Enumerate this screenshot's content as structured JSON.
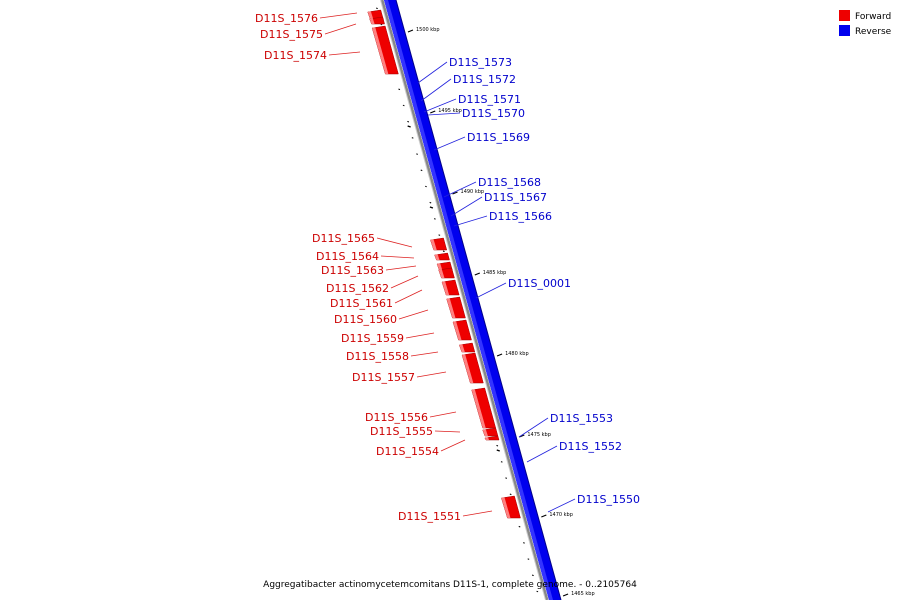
{
  "legend": [
    {
      "label": "Forward",
      "color": "#ee0000"
    },
    {
      "label": "Reverse",
      "color": "#0000ee"
    }
  ],
  "caption": "Aggregatibacter actinomycetemcomitans D11S-1, complete genome. - 0..2105764",
  "colors": {
    "forward": "#ee0000",
    "reverse": "#0000ee",
    "backbone": "#888888",
    "label_forward": "#cc0000",
    "label_reverse": "#0000cc"
  },
  "ticks": [
    {
      "label": "1500 kbp",
      "kbp": 1500
    },
    {
      "label": "1495 kbp",
      "kbp": 1495
    },
    {
      "label": "1490 kbp",
      "kbp": 1490
    },
    {
      "label": "1485 kbp",
      "kbp": 1485
    },
    {
      "label": "1480 kbp",
      "kbp": 1480
    },
    {
      "label": "1475 kbp",
      "kbp": 1475
    },
    {
      "label": "1470 kbp",
      "kbp": 1470
    },
    {
      "label": "1465 kbp",
      "kbp": 1465
    }
  ],
  "forward_genes": [
    {
      "label": "D11S_1576"
    },
    {
      "label": "D11S_1575"
    },
    {
      "label": "D11S_1574"
    },
    {
      "label": "D11S_1565"
    },
    {
      "label": "D11S_1564"
    },
    {
      "label": "D11S_1563"
    },
    {
      "label": "D11S_1562"
    },
    {
      "label": "D11S_1561"
    },
    {
      "label": "D11S_1560"
    },
    {
      "label": "D11S_1559"
    },
    {
      "label": "D11S_1558"
    },
    {
      "label": "D11S_1557"
    },
    {
      "label": "D11S_1556"
    },
    {
      "label": "D11S_1555"
    },
    {
      "label": "D11S_1554"
    },
    {
      "label": "D11S_1551"
    }
  ],
  "reverse_genes": [
    {
      "label": "D11S_1573"
    },
    {
      "label": "D11S_1572"
    },
    {
      "label": "D11S_1571"
    },
    {
      "label": "D11S_1570"
    },
    {
      "label": "D11S_1569"
    },
    {
      "label": "D11S_1568"
    },
    {
      "label": "D11S_1567"
    },
    {
      "label": "D11S_1566"
    },
    {
      "label": "D11S_0001"
    },
    {
      "label": "D11S_1553"
    },
    {
      "label": "D11S_1552"
    },
    {
      "label": "D11S_1550"
    }
  ]
}
